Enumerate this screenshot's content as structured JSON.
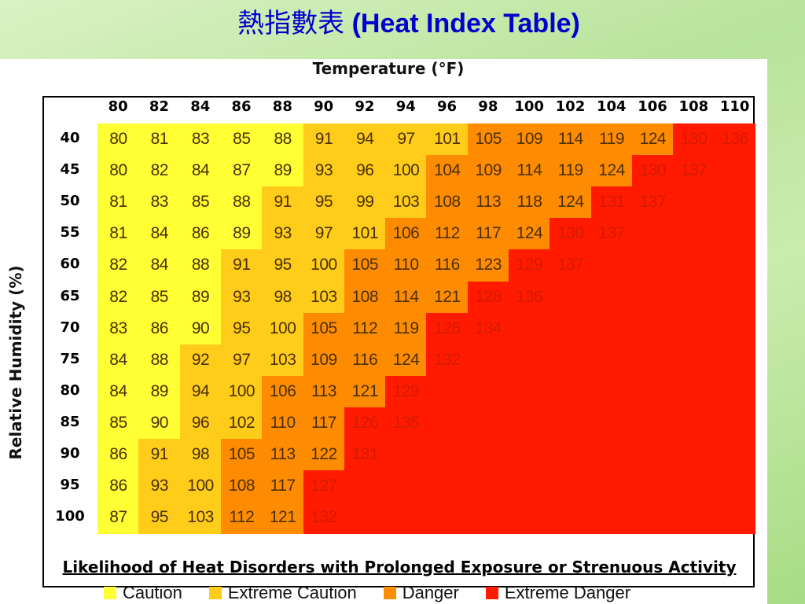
{
  "title": {
    "chinese": "熱指數表",
    "english": "(Heat Index Table)"
  },
  "colors": {
    "title": "#0000cc",
    "caution": "#ffff33",
    "extreme_caution": "#ffcc1a",
    "danger": "#ff8c00",
    "extreme_danger": "#ff1a00"
  },
  "temperature_axis": {
    "title": "Temperature (°F)",
    "values": [
      "80",
      "82",
      "84",
      "86",
      "88",
      "90",
      "92",
      "94",
      "96",
      "98",
      "100",
      "102",
      "104",
      "106",
      "108",
      "110"
    ]
  },
  "humidity_axis": {
    "title": "Relative Humidity (%)",
    "values": [
      "40",
      "45",
      "50",
      "55",
      "60",
      "65",
      "70",
      "75",
      "80",
      "85",
      "90",
      "95",
      "100"
    ]
  },
  "table": {
    "rows": [
      [
        "80",
        "81",
        "83",
        "85",
        "88",
        "91",
        "94",
        "97",
        "101",
        "105",
        "109",
        "114",
        "119",
        "124",
        "130",
        "136"
      ],
      [
        "80",
        "82",
        "84",
        "87",
        "89",
        "93",
        "96",
        "100",
        "104",
        "109",
        "114",
        "119",
        "124",
        "130",
        "137",
        ""
      ],
      [
        "81",
        "83",
        "85",
        "88",
        "91",
        "95",
        "99",
        "103",
        "108",
        "113",
        "118",
        "124",
        "131",
        "137",
        "",
        ""
      ],
      [
        "81",
        "84",
        "86",
        "89",
        "93",
        "97",
        "101",
        "106",
        "112",
        "117",
        "124",
        "130",
        "137",
        "",
        "",
        ""
      ],
      [
        "82",
        "84",
        "88",
        "91",
        "95",
        "100",
        "105",
        "110",
        "116",
        "123",
        "129",
        "137",
        "",
        "",
        "",
        ""
      ],
      [
        "82",
        "85",
        "89",
        "93",
        "98",
        "103",
        "108",
        "114",
        "121",
        "128",
        "136",
        "",
        "",
        "",
        "",
        ""
      ],
      [
        "83",
        "86",
        "90",
        "95",
        "100",
        "105",
        "112",
        "119",
        "126",
        "134",
        "",
        "",
        "",
        "",
        "",
        ""
      ],
      [
        "84",
        "88",
        "92",
        "97",
        "103",
        "109",
        "116",
        "124",
        "132",
        "",
        "",
        "",
        "",
        "",
        "",
        ""
      ],
      [
        "84",
        "89",
        "94",
        "100",
        "106",
        "113",
        "121",
        "129",
        "",
        "",
        "",
        "",
        "",
        "",
        "",
        ""
      ],
      [
        "85",
        "90",
        "96",
        "102",
        "110",
        "117",
        "126",
        "135",
        "",
        "",
        "",
        "",
        "",
        "",
        "",
        ""
      ],
      [
        "86",
        "91",
        "98",
        "105",
        "113",
        "122",
        "131",
        "",
        "",
        "",
        "",
        "",
        "",
        "",
        "",
        ""
      ],
      [
        "86",
        "93",
        "100",
        "108",
        "117",
        "127",
        "",
        "",
        "",
        "",
        "",
        "",
        "",
        "",
        "",
        ""
      ],
      [
        "87",
        "95",
        "103",
        "112",
        "121",
        "132",
        "",
        "",
        "",
        "",
        "",
        "",
        "",
        "",
        "",
        ""
      ]
    ],
    "categories": [
      [
        "c",
        "c",
        "c",
        "c",
        "c",
        "ec",
        "ec",
        "ec",
        "ec",
        "d",
        "d",
        "d",
        "d",
        "d",
        "ed",
        "ed"
      ],
      [
        "c",
        "c",
        "c",
        "c",
        "c",
        "ec",
        "ec",
        "ec",
        "d",
        "d",
        "d",
        "d",
        "d",
        "ed",
        "ed",
        "ed"
      ],
      [
        "c",
        "c",
        "c",
        "c",
        "ec",
        "ec",
        "ec",
        "ec",
        "d",
        "d",
        "d",
        "d",
        "ed",
        "ed",
        "ed",
        "ed"
      ],
      [
        "c",
        "c",
        "c",
        "c",
        "ec",
        "ec",
        "ec",
        "d",
        "d",
        "d",
        "d",
        "ed",
        "ed",
        "ed",
        "ed",
        "ed"
      ],
      [
        "c",
        "c",
        "c",
        "ec",
        "ec",
        "ec",
        "d",
        "d",
        "d",
        "d",
        "ed",
        "ed",
        "ed",
        "ed",
        "ed",
        "ed"
      ],
      [
        "c",
        "c",
        "c",
        "ec",
        "ec",
        "ec",
        "d",
        "d",
        "d",
        "ed",
        "ed",
        "ed",
        "ed",
        "ed",
        "ed",
        "ed"
      ],
      [
        "c",
        "c",
        "c",
        "ec",
        "ec",
        "d",
        "d",
        "d",
        "ed",
        "ed",
        "ed",
        "ed",
        "ed",
        "ed",
        "ed",
        "ed"
      ],
      [
        "c",
        "c",
        "ec",
        "ec",
        "ec",
        "d",
        "d",
        "d",
        "ed",
        "ed",
        "ed",
        "ed",
        "ed",
        "ed",
        "ed",
        "ed"
      ],
      [
        "c",
        "c",
        "ec",
        "ec",
        "d",
        "d",
        "d",
        "ed",
        "ed",
        "ed",
        "ed",
        "ed",
        "ed",
        "ed",
        "ed",
        "ed"
      ],
      [
        "c",
        "c",
        "ec",
        "ec",
        "d",
        "d",
        "ed",
        "ed",
        "ed",
        "ed",
        "ed",
        "ed",
        "ed",
        "ed",
        "ed",
        "ed"
      ],
      [
        "c",
        "ec",
        "ec",
        "d",
        "d",
        "d",
        "ed",
        "ed",
        "ed",
        "ed",
        "ed",
        "ed",
        "ed",
        "ed",
        "ed",
        "ed"
      ],
      [
        "c",
        "ec",
        "ec",
        "d",
        "d",
        "ed",
        "ed",
        "ed",
        "ed",
        "ed",
        "ed",
        "ed",
        "ed",
        "ed",
        "ed",
        "ed"
      ],
      [
        "c",
        "ec",
        "ec",
        "d",
        "d",
        "ed",
        "ed",
        "ed",
        "ed",
        "ed",
        "ed",
        "ed",
        "ed",
        "ed",
        "ed",
        "ed"
      ]
    ]
  },
  "legend": {
    "title": "Likelihood of Heat Disorders with Prolonged Exposure or Strenuous Activity",
    "items": [
      {
        "label": "Caution",
        "key": "caution"
      },
      {
        "label": "Extreme Caution",
        "key": "extreme_caution"
      },
      {
        "label": "Danger",
        "key": "danger"
      },
      {
        "label": "Extreme Danger",
        "key": "extreme_danger"
      }
    ]
  }
}
